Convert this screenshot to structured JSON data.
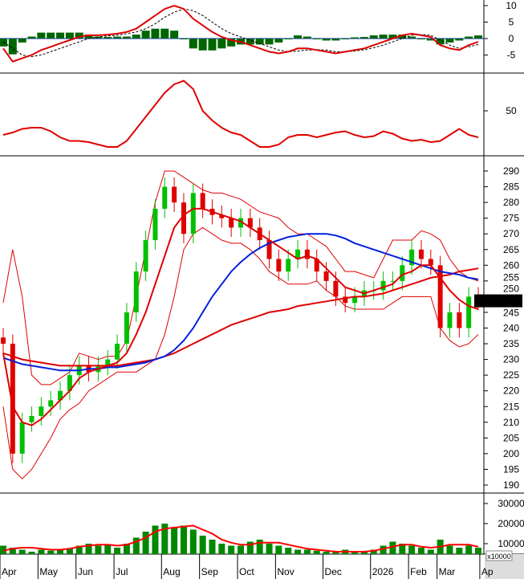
{
  "colors": {
    "up": "#00c000",
    "down": "#e00000",
    "ma_fast": "#e00000",
    "ma_slow": "#e00000",
    "ma_mid": "#0020e0",
    "band": "#e00000",
    "volume": "#008800",
    "volume_ma": "#ff0000",
    "macd": "#e00000",
    "signal": "#000000",
    "histogram": "#006600",
    "rsi": "#e00000",
    "price_tag_bg": "#000000",
    "price_tag_text": "#ff0000"
  },
  "x_axis": {
    "labels": [
      "Apr",
      "May",
      "Jun",
      "Jul",
      "Aug",
      "Sep",
      "Oct",
      "Nov",
      "Dec",
      "2026",
      "Feb",
      "Mar",
      "Ap"
    ],
    "label_week_index": [
      0,
      4,
      8,
      12,
      17,
      21,
      25,
      29,
      34,
      39,
      43,
      46,
      50.5
    ]
  },
  "chart_data": [
    {
      "type": "line",
      "panel": "macd",
      "yticks": [
        10,
        5,
        0,
        -5
      ],
      "ylim": [
        -8,
        12
      ],
      "series": [
        {
          "key": "macd",
          "style": "solid",
          "values": [
            -3,
            -7,
            -6,
            -5,
            -3.5,
            -2.5,
            -1.5,
            -0.5,
            0.5,
            1,
            1,
            1.2,
            1.5,
            2,
            3,
            5,
            7,
            9,
            10,
            9,
            6,
            4,
            2,
            0.5,
            -0.5,
            -1,
            -2,
            -3,
            -4,
            -4.5,
            -4,
            -3,
            -3,
            -3.5,
            -4,
            -4.5,
            -4,
            -3.5,
            -3,
            -2,
            -1,
            0,
            1,
            1.5,
            1,
            0.5,
            -2,
            -3,
            -3.5,
            -2,
            -1
          ]
        },
        {
          "key": "signal",
          "style": "dashed",
          "values": [
            -1,
            -3,
            -5,
            -5.5,
            -5,
            -4,
            -3,
            -2,
            -1,
            0,
            0.5,
            0.8,
            1,
            1.5,
            2,
            3,
            4.5,
            6.5,
            8,
            9,
            8.5,
            7,
            5,
            3,
            1.5,
            0.5,
            -0.5,
            -1.5,
            -2.5,
            -3.5,
            -4,
            -3.8,
            -3.5,
            -3.4,
            -3.5,
            -4,
            -4,
            -3.8,
            -3.4,
            -2.8,
            -2,
            -1,
            0,
            1,
            1.2,
            1,
            -0.5,
            -2,
            -3,
            -2.5,
            -1.8
          ]
        },
        {
          "key": "histogram",
          "style": "bar",
          "values": [
            -2,
            -4,
            -1,
            0.5,
            1.5,
            1.5,
            1.5,
            1.5,
            1.5,
            1,
            0.5,
            0.4,
            0.5,
            0.5,
            1,
            2,
            2.5,
            2.5,
            2,
            0,
            -2.5,
            -3,
            -3,
            -2.5,
            -2,
            -1.5,
            -1.5,
            -1.5,
            -1.5,
            -1,
            0,
            0.8,
            0.5,
            -0.1,
            -0.5,
            -0.5,
            0,
            0.3,
            0.4,
            0.8,
            1,
            1,
            1,
            0.5,
            -0.2,
            -0.5,
            -1.5,
            -1,
            -0.5,
            0.5,
            0.8
          ]
        }
      ]
    },
    {
      "type": "line",
      "panel": "rsi",
      "yticks": [
        50
      ],
      "ylim": [
        0,
        100
      ],
      "series": [
        {
          "key": "rsi",
          "values": [
            30,
            32,
            35,
            36,
            36,
            33,
            28,
            25,
            25,
            24,
            22,
            20,
            20,
            25,
            35,
            45,
            55,
            65,
            72,
            75,
            68,
            50,
            42,
            36,
            32,
            30,
            25,
            20,
            20,
            22,
            28,
            30,
            30,
            28,
            30,
            32,
            33,
            30,
            28,
            29,
            33,
            31,
            27,
            25,
            26,
            24,
            25,
            30,
            35,
            30,
            28
          ]
        }
      ]
    },
    {
      "type": "candlestick",
      "panel": "price",
      "yticks": [
        290,
        285,
        280,
        275,
        270,
        265,
        260,
        255,
        250,
        245,
        240,
        235,
        230,
        225,
        220,
        215,
        210,
        205,
        200,
        195,
        190
      ],
      "ylim": [
        188,
        293
      ],
      "last_price": "248.680",
      "close": [
        235,
        200,
        210,
        212,
        215,
        217,
        220,
        225,
        228,
        226,
        228,
        230,
        235,
        245,
        258,
        268,
        278,
        285,
        280,
        270,
        283,
        278,
        276,
        275,
        272,
        275,
        272,
        268,
        262,
        258,
        262,
        265,
        262,
        258,
        255,
        250,
        248,
        250,
        252,
        252,
        255,
        255,
        260,
        265,
        262,
        260,
        240,
        245,
        240,
        250,
        248.68
      ],
      "series": [
        {
          "key": "ma_fast",
          "values": [
            232,
            215,
            210,
            209,
            211,
            214,
            217,
            220,
            224,
            226,
            227,
            228,
            229,
            232,
            238,
            245,
            254,
            263,
            272,
            276,
            278,
            278,
            277,
            276,
            275,
            274,
            272,
            270,
            268,
            266,
            264,
            262,
            263,
            262,
            259,
            256,
            253,
            252,
            251,
            252,
            253,
            254,
            257,
            258,
            260,
            260,
            256,
            252,
            249,
            247,
            246
          ]
        },
        {
          "key": "ma_mid",
          "values": [
            230.5,
            229.5,
            228.5,
            228,
            227.5,
            227,
            226.5,
            226.5,
            226.5,
            227,
            227,
            227.5,
            227.5,
            228,
            228.5,
            229,
            230,
            231,
            233,
            236,
            240,
            245,
            250,
            254,
            258,
            261,
            263.5,
            265.5,
            267,
            268,
            269,
            269.5,
            270,
            270,
            270,
            269.5,
            268.5,
            267,
            266,
            265,
            264,
            263,
            262,
            261,
            260,
            259,
            258,
            257.5,
            257,
            256,
            255.5
          ]
        },
        {
          "key": "ma_slow",
          "values": [
            232,
            231,
            230,
            229.5,
            229,
            228.5,
            228,
            228,
            228,
            228,
            228,
            228,
            228,
            228.5,
            229,
            229.5,
            230,
            231,
            232,
            233.5,
            235,
            236.5,
            238,
            239.5,
            241,
            242,
            243,
            244,
            245,
            245.5,
            246,
            247,
            247.5,
            248,
            248.5,
            249,
            249.5,
            250,
            250,
            250.5,
            251,
            252,
            253,
            254,
            255,
            256,
            256.5,
            257,
            258,
            258.5,
            259
          ]
        },
        {
          "key": "band_upper",
          "values": [
            248,
            265,
            250,
            225,
            222,
            222,
            224,
            226,
            232,
            231,
            230,
            231,
            231,
            236,
            250,
            265,
            280,
            290,
            290,
            288,
            286,
            284,
            283,
            283,
            282,
            281,
            279,
            277,
            276,
            275,
            272,
            270,
            270,
            268,
            266,
            262,
            258,
            258,
            257,
            256,
            262,
            268,
            268,
            268,
            271,
            270,
            268,
            262,
            258,
            256,
            255
          ]
        },
        {
          "key": "band_lower",
          "values": [
            215,
            195,
            192,
            195,
            200,
            205,
            211,
            214,
            216,
            220,
            222,
            224,
            226,
            226,
            226,
            228,
            230,
            238,
            250,
            265,
            270,
            272,
            270,
            268,
            267,
            267,
            265,
            262,
            258,
            256,
            254,
            254,
            254,
            255,
            252,
            250,
            247,
            246,
            246,
            246,
            246,
            248,
            250,
            250,
            250,
            250,
            240,
            236,
            234,
            235,
            238
          ]
        }
      ]
    },
    {
      "type": "bar",
      "panel": "volume",
      "yticks": [
        30000,
        20000,
        10000
      ],
      "unit_label": "x10000",
      "ylim": [
        0,
        34000
      ],
      "values": [
        9000,
        8000,
        7000,
        6000,
        7000,
        6500,
        7000,
        7500,
        9000,
        10000,
        9000,
        9500,
        8000,
        10000,
        13000,
        16000,
        19000,
        20000,
        18000,
        19000,
        17000,
        14000,
        12000,
        10000,
        9000,
        9000,
        11000,
        12000,
        10000,
        9000,
        8000,
        7000,
        7000,
        6500,
        6000,
        6000,
        7000,
        6000,
        6000,
        7000,
        9000,
        11000,
        10000,
        9000,
        8000,
        7000,
        12000,
        9000,
        8000,
        9000,
        8000
      ],
      "series": [
        {
          "key": "volume_ma",
          "values": [
            6500,
            7500,
            8000,
            8000,
            7500,
            7000,
            7000,
            7500,
            8500,
            9000,
            9500,
            9500,
            9000,
            9500,
            11000,
            13000,
            16000,
            17500,
            18000,
            18500,
            19000,
            17000,
            15000,
            12000,
            10500,
            9500,
            9500,
            10500,
            10500,
            10500,
            9500,
            8500,
            7500,
            7000,
            6500,
            6000,
            6000,
            6000,
            6000,
            6500,
            7500,
            8500,
            9500,
            9500,
            8500,
            8000,
            8500,
            9500,
            9500,
            9500,
            8500
          ]
        }
      ]
    }
  ]
}
